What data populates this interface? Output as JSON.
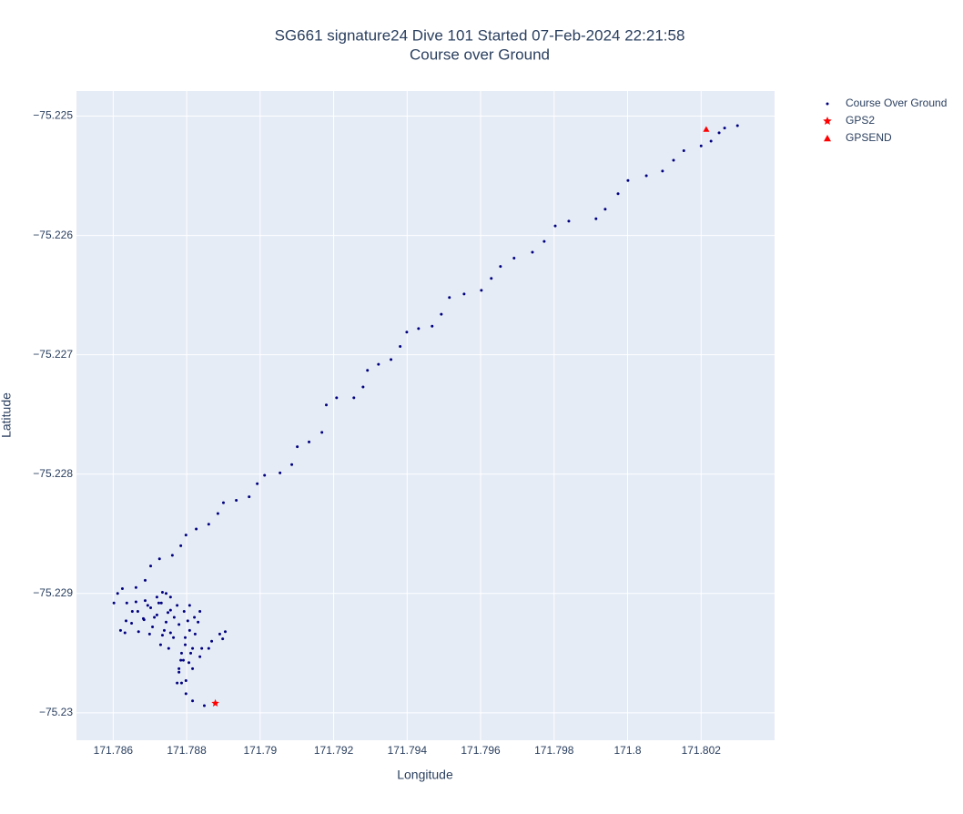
{
  "chart_data": {
    "type": "scatter",
    "title": "SG661 signature24 Dive 101 Started 07-Feb-2024 22:21:58",
    "subtitle": "Course over Ground",
    "x_label": "Longitude",
    "y_label": "Latitude",
    "xlim": [
      171.785,
      171.804
    ],
    "ylim": [
      -75.23023,
      -75.22479
    ],
    "xticks": [
      171.786,
      171.788,
      171.79,
      171.792,
      171.794,
      171.796,
      171.798,
      171.8,
      171.802
    ],
    "yticks": [
      {
        "value": -75.225,
        "label": "−75.225"
      },
      {
        "value": -75.226,
        "label": "−75.226"
      },
      {
        "value": -75.227,
        "label": "−75.227"
      },
      {
        "value": -75.228,
        "label": "−75.228"
      },
      {
        "value": -75.229,
        "label": "−75.229"
      },
      {
        "value": -75.23,
        "label": "−75.23"
      }
    ],
    "grid": true,
    "legend": "outside-right",
    "series": [
      {
        "name": "Course Over Ground",
        "color": "#00007f",
        "symbol": "circle",
        "x": [
          171.78878,
          171.78848,
          171.78816,
          171.78798,
          171.78786,
          171.78779,
          171.78791,
          171.78811,
          171.78841,
          171.78868,
          171.7889,
          171.78905,
          171.78898,
          171.7886,
          171.78836,
          171.78816,
          171.78798,
          171.78806,
          171.78816,
          171.78823,
          171.78831,
          171.78836,
          171.78821,
          171.78808,
          171.78796,
          171.78784,
          171.78774,
          171.78779,
          171.78786,
          171.78796,
          171.78803,
          171.78808,
          171.78793,
          171.78779,
          171.78764,
          171.78751,
          171.78756,
          171.78766,
          171.78774,
          171.78756,
          171.78744,
          171.78734,
          171.78729,
          171.78739,
          171.78749,
          171.78756,
          171.78744,
          171.78731,
          171.78719,
          171.78707,
          171.78699,
          171.78712,
          171.78724,
          171.78734,
          171.78719,
          171.78702,
          171.78684,
          171.78669,
          171.78682,
          171.78694,
          171.78687,
          171.78667,
          171.7865,
          171.78632,
          171.7862,
          171.78635,
          171.78652,
          171.78662,
          171.78637,
          171.78602,
          171.78612,
          171.78625,
          171.78662,
          171.78687,
          171.78702,
          171.78726,
          171.78761,
          171.78784,
          171.78798,
          171.78826,
          171.7886,
          171.78885,
          171.789,
          171.78935,
          171.7897,
          171.78992,
          171.79012,
          171.79054,
          171.79086,
          171.79101,
          171.79133,
          171.79168,
          171.7918,
          171.79208,
          171.79255,
          171.7928,
          171.79292,
          171.79322,
          171.79356,
          171.79381,
          171.79399,
          171.79431,
          171.79468,
          171.79493,
          171.79515,
          171.79555,
          171.79602,
          171.79629,
          171.79654,
          171.79691,
          171.79741,
          171.79773,
          171.79803,
          171.7984,
          171.79914,
          171.79939,
          171.79974,
          171.80001,
          171.80051,
          171.80095,
          171.80125,
          171.80153,
          171.802,
          171.80227,
          171.80249,
          171.80264,
          171.80299
        ],
        "values": [
          -75.22992,
          -75.22994,
          -75.2299,
          -75.22984,
          -75.22975,
          -75.22966,
          -75.22956,
          -75.2295,
          -75.22946,
          -75.2294,
          -75.22934,
          -75.22932,
          -75.22938,
          -75.22946,
          -75.22953,
          -75.22963,
          -75.22973,
          -75.22958,
          -75.22946,
          -75.22934,
          -75.22924,
          -75.22915,
          -75.2292,
          -75.22931,
          -75.22943,
          -75.22956,
          -75.22975,
          -75.22963,
          -75.2295,
          -75.22937,
          -75.22923,
          -75.2291,
          -75.22915,
          -75.22926,
          -75.22937,
          -75.22946,
          -75.22933,
          -75.2292,
          -75.2291,
          -75.22914,
          -75.22924,
          -75.22935,
          -75.22943,
          -75.22931,
          -75.22916,
          -75.22903,
          -75.229,
          -75.22908,
          -75.22918,
          -75.22928,
          -75.22934,
          -75.2292,
          -75.22908,
          -75.22899,
          -75.22903,
          -75.22912,
          -75.22922,
          -75.22932,
          -75.22921,
          -75.2291,
          -75.22906,
          -75.22915,
          -75.22925,
          -75.22933,
          -75.22931,
          -75.22923,
          -75.22915,
          -75.22907,
          -75.22908,
          -75.22908,
          -75.229,
          -75.22896,
          -75.22895,
          -75.22889,
          -75.22877,
          -75.22871,
          -75.22868,
          -75.2286,
          -75.22851,
          -75.22846,
          -75.22842,
          -75.22833,
          -75.22824,
          -75.22822,
          -75.22819,
          -75.22808,
          -75.22801,
          -75.22799,
          -75.22792,
          -75.22777,
          -75.22773,
          -75.22765,
          -75.22742,
          -75.22736,
          -75.22736,
          -75.22727,
          -75.22713,
          -75.22708,
          -75.22704,
          -75.22693,
          -75.22681,
          -75.22678,
          -75.22676,
          -75.22666,
          -75.22652,
          -75.22649,
          -75.22646,
          -75.22636,
          -75.22626,
          -75.22619,
          -75.22614,
          -75.22605,
          -75.22592,
          -75.22588,
          -75.22586,
          -75.22578,
          -75.22565,
          -75.22554,
          -75.2255,
          -75.22546,
          -75.22537,
          -75.22529,
          -75.22525,
          -75.22521,
          -75.22514,
          -75.2251,
          -75.22508
        ]
      },
      {
        "name": "GPS2",
        "color": "#ff0000",
        "symbol": "star",
        "x": [
          171.78878
        ],
        "values": [
          -75.22992
        ]
      },
      {
        "name": "GPSEND",
        "color": "#ff0000",
        "symbol": "triangle",
        "x": [
          171.80214
        ],
        "values": [
          -75.22511
        ]
      }
    ]
  }
}
